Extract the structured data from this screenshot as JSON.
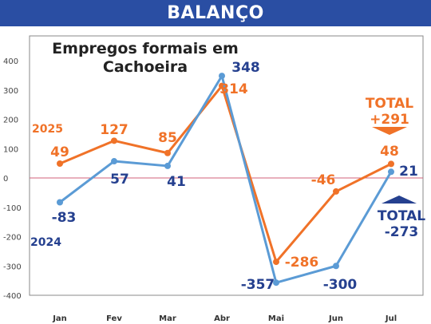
{
  "banner": "BALANÇO",
  "chart_data": {
    "type": "line",
    "title": [
      "Empregos formais em",
      "Cachoeira"
    ],
    "categories": [
      "Jan",
      "Fev",
      "Mar",
      "Abr",
      "Mai",
      "Jun",
      "Jul"
    ],
    "ylim": [
      -400,
      400
    ],
    "yticks": [
      400,
      300,
      200,
      100,
      0,
      -100,
      -200,
      -300,
      -400
    ],
    "series": [
      {
        "name": "2025",
        "color": "#f07228",
        "values": [
          49,
          127,
          85,
          314,
          -286,
          -46,
          48
        ],
        "labels": [
          "49",
          "127",
          "85",
          "314",
          "-286",
          "-46",
          "48"
        ]
      },
      {
        "name": "2024",
        "color": "#5b9bd5",
        "label_color": "#25408f",
        "values": [
          -83,
          57,
          41,
          348,
          -357,
          -300,
          21
        ],
        "labels": [
          "-83",
          "57",
          "41",
          "348",
          "-357",
          "-300",
          "21"
        ]
      }
    ],
    "totals": [
      {
        "line1": "TOTAL",
        "line2": "+291",
        "color": "#f07228"
      },
      {
        "line1": "TOTAL",
        "line2": "-273",
        "color": "#25408f"
      }
    ],
    "zero_line_color": "#d0607a"
  }
}
